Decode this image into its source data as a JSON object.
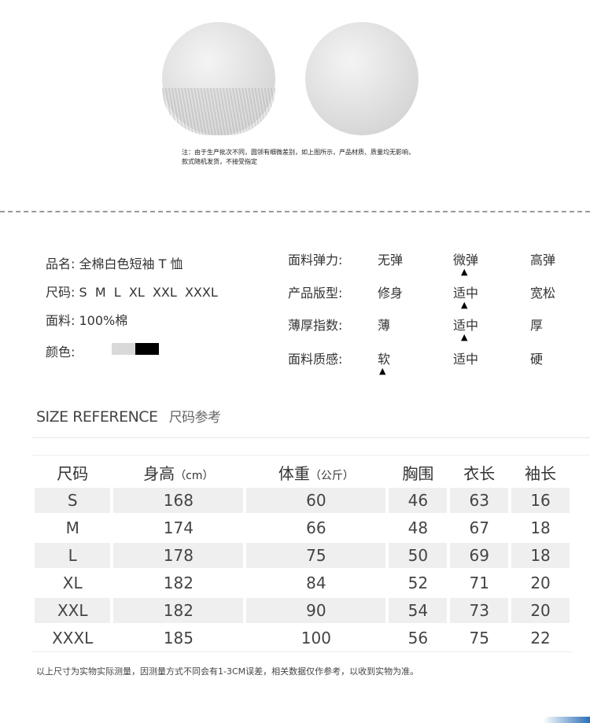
{
  "note": "注：由于生产批次不同，圆领有细微差别，如上图所示，产品材质、质量均无影响，款式随机发货，不接受指定",
  "product": {
    "name_label": "品名:",
    "name": "全棉白色短袖 T 恤",
    "size_label": "尺码:",
    "sizes": "S  M  L  XL  XXL  XXXL",
    "fabric_label": "面料:",
    "fabric": "100%棉",
    "color_label": "颜色:",
    "colors": [
      "#d9d9d9",
      "#000000"
    ]
  },
  "properties": [
    {
      "label": "面料弹力:",
      "options": [
        "无弹",
        "微弹",
        "高弹"
      ],
      "selected": 1
    },
    {
      "label": "产品版型:",
      "options": [
        "修身",
        "适中",
        "宽松"
      ],
      "selected": 1
    },
    {
      "label": "薄厚指数:",
      "options": [
        "薄",
        "适中",
        "厚"
      ],
      "selected": 1
    },
    {
      "label": "面料质感:",
      "options": [
        "软",
        "适中",
        "硬"
      ],
      "selected": 0
    }
  ],
  "size_ref": {
    "title": "SIZE REFERENCE",
    "subtitle": "尺码参考"
  },
  "table": {
    "headers": [
      {
        "main": "尺码",
        "unit": ""
      },
      {
        "main": "身高",
        "unit": "（cm）"
      },
      {
        "main": "体重",
        "unit": "（公斤）"
      },
      {
        "main": "胸围",
        "unit": ""
      },
      {
        "main": "衣长",
        "unit": ""
      },
      {
        "main": "袖长",
        "unit": ""
      }
    ],
    "rows": [
      [
        "S",
        "168",
        "60",
        "46",
        "63",
        "16"
      ],
      [
        "M",
        "174",
        "66",
        "48",
        "67",
        "18"
      ],
      [
        "L",
        "178",
        "75",
        "50",
        "69",
        "18"
      ],
      [
        "XL",
        "182",
        "84",
        "52",
        "71",
        "20"
      ],
      [
        "XXL",
        "182",
        "90",
        "54",
        "73",
        "20"
      ],
      [
        "XXXL",
        "185",
        "100",
        "56",
        "75",
        "22"
      ]
    ]
  },
  "footnote": "以上尺寸为实物实际测量，因测量方式不同会有1-3CM误差，相关数据仅作参考，以收到实物为准。"
}
